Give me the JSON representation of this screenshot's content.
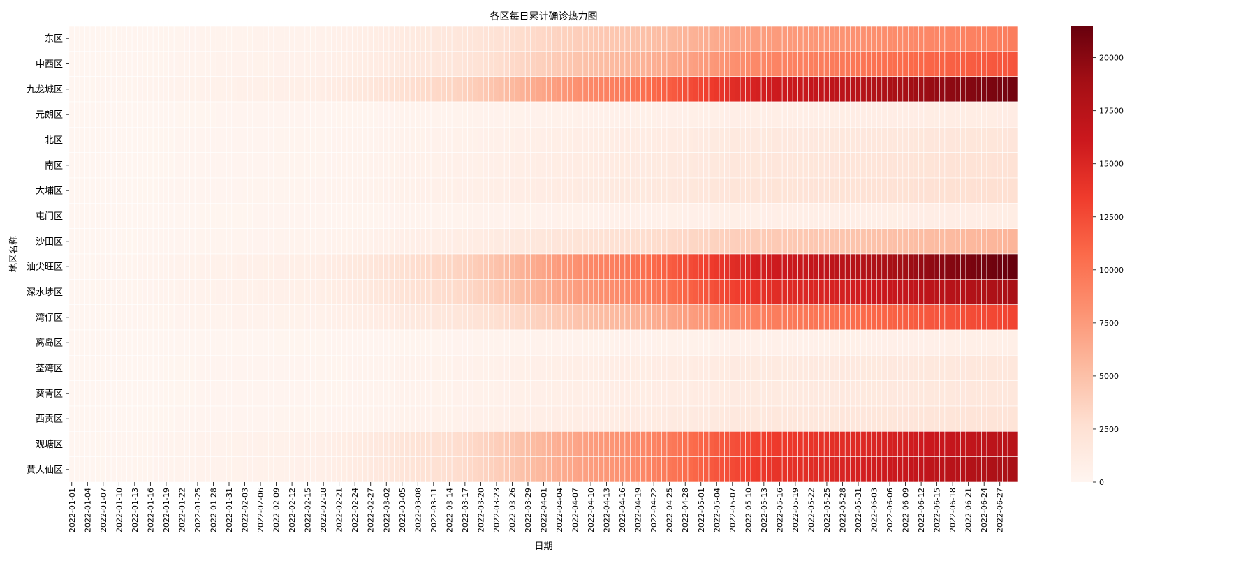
{
  "chart_data": {
    "type": "heatmap",
    "title": "各区每日累计确诊热力图",
    "xlabel": "日期",
    "ylabel": "地区名称",
    "colormap": "Reds",
    "colormap_stops": [
      "#fff5f0",
      "#fee0d2",
      "#fcbba1",
      "#fc9272",
      "#fb6a4a",
      "#ef3b2c",
      "#cb181d",
      "#a50f15",
      "#67000d"
    ],
    "grid_line_color": "#ffffff",
    "date_range": [
      "2022-01-01",
      "2022-06-30"
    ],
    "value_range": [
      0,
      21500
    ],
    "x_tick_labels": [
      "2022-01-01",
      "2022-01-04",
      "2022-01-07",
      "2022-01-10",
      "2022-01-13",
      "2022-01-16",
      "2022-01-19",
      "2022-01-22",
      "2022-01-25",
      "2022-01-28",
      "2022-01-31",
      "2022-02-03",
      "2022-02-06",
      "2022-02-09",
      "2022-02-12",
      "2022-02-15",
      "2022-02-18",
      "2022-02-21",
      "2022-02-24",
      "2022-02-27",
      "2022-03-02",
      "2022-03-05",
      "2022-03-08",
      "2022-03-11",
      "2022-03-14",
      "2022-03-17",
      "2022-03-20",
      "2022-03-23",
      "2022-03-26",
      "2022-03-29",
      "2022-04-01",
      "2022-04-04",
      "2022-04-07",
      "2022-04-10",
      "2022-04-13",
      "2022-04-16",
      "2022-04-19",
      "2022-04-22",
      "2022-04-25",
      "2022-04-28",
      "2022-05-01",
      "2022-05-04",
      "2022-05-07",
      "2022-05-10",
      "2022-05-13",
      "2022-05-16",
      "2022-05-19",
      "2022-05-22",
      "2022-05-25",
      "2022-05-28",
      "2022-05-31",
      "2022-06-03",
      "2022-06-06",
      "2022-06-09",
      "2022-06-12",
      "2022-06-15",
      "2022-06-18",
      "2022-06-21",
      "2022-06-24",
      "2022-06-27"
    ],
    "districts": [
      "东区",
      "中西区",
      "九龙城区",
      "元朗区",
      "北区",
      "南区",
      "大埔区",
      "屯门区",
      "沙田区",
      "油尖旺区",
      "深水埗区",
      "湾仔区",
      "离岛区",
      "荃湾区",
      "葵青区",
      "西贡区",
      "观塘区",
      "黄大仙区"
    ],
    "series": [
      {
        "name": "东区",
        "checkpoints": [
          [
            "2022-01-01",
            0
          ],
          [
            "2022-02-15",
            400
          ],
          [
            "2022-03-15",
            1800
          ],
          [
            "2022-04-15",
            4600
          ],
          [
            "2022-05-15",
            7500
          ],
          [
            "2022-06-30",
            9500
          ]
        ]
      },
      {
        "name": "中西区",
        "checkpoints": [
          [
            "2022-01-01",
            0
          ],
          [
            "2022-02-15",
            500
          ],
          [
            "2022-03-15",
            2000
          ],
          [
            "2022-04-15",
            5500
          ],
          [
            "2022-05-15",
            9000
          ],
          [
            "2022-06-30",
            12000
          ]
        ]
      },
      {
        "name": "九龙城区",
        "checkpoints": [
          [
            "2022-01-01",
            0
          ],
          [
            "2022-02-15",
            800
          ],
          [
            "2022-03-15",
            3500
          ],
          [
            "2022-04-15",
            9500
          ],
          [
            "2022-05-15",
            16000
          ],
          [
            "2022-06-30",
            21000
          ]
        ]
      },
      {
        "name": "元朗区",
        "checkpoints": [
          [
            "2022-01-01",
            0
          ],
          [
            "2022-02-15",
            100
          ],
          [
            "2022-03-15",
            300
          ],
          [
            "2022-04-15",
            650
          ],
          [
            "2022-05-15",
            900
          ],
          [
            "2022-06-30",
            1100
          ]
        ]
      },
      {
        "name": "北区",
        "checkpoints": [
          [
            "2022-01-01",
            0
          ],
          [
            "2022-02-15",
            150
          ],
          [
            "2022-03-15",
            500
          ],
          [
            "2022-04-15",
            1100
          ],
          [
            "2022-05-15",
            1600
          ],
          [
            "2022-06-30",
            2000
          ]
        ]
      },
      {
        "name": "南区",
        "checkpoints": [
          [
            "2022-01-01",
            0
          ],
          [
            "2022-02-15",
            150
          ],
          [
            "2022-03-15",
            600
          ],
          [
            "2022-04-15",
            1300
          ],
          [
            "2022-05-15",
            1900
          ],
          [
            "2022-06-30",
            2400
          ]
        ]
      },
      {
        "name": "大埔区",
        "checkpoints": [
          [
            "2022-01-01",
            0
          ],
          [
            "2022-02-15",
            180
          ],
          [
            "2022-03-15",
            700
          ],
          [
            "2022-04-15",
            1500
          ],
          [
            "2022-05-15",
            2200
          ],
          [
            "2022-06-30",
            2700
          ]
        ]
      },
      {
        "name": "屯门区",
        "checkpoints": [
          [
            "2022-01-01",
            0
          ],
          [
            "2022-02-15",
            80
          ],
          [
            "2022-03-15",
            300
          ],
          [
            "2022-04-15",
            600
          ],
          [
            "2022-05-15",
            850
          ],
          [
            "2022-06-30",
            1050
          ]
        ]
      },
      {
        "name": "沙田区",
        "checkpoints": [
          [
            "2022-01-01",
            0
          ],
          [
            "2022-02-15",
            250
          ],
          [
            "2022-03-15",
            1000
          ],
          [
            "2022-04-15",
            2600
          ],
          [
            "2022-05-15",
            4300
          ],
          [
            "2022-06-30",
            5800
          ]
        ]
      },
      {
        "name": "油尖旺区",
        "checkpoints": [
          [
            "2022-01-01",
            0
          ],
          [
            "2022-02-15",
            800
          ],
          [
            "2022-03-15",
            3500
          ],
          [
            "2022-04-15",
            9500
          ],
          [
            "2022-05-15",
            16000
          ],
          [
            "2022-06-30",
            21500
          ]
        ]
      },
      {
        "name": "深水埗区",
        "checkpoints": [
          [
            "2022-01-01",
            0
          ],
          [
            "2022-02-15",
            700
          ],
          [
            "2022-03-15",
            3000
          ],
          [
            "2022-04-15",
            8500
          ],
          [
            "2022-05-15",
            14500
          ],
          [
            "2022-06-30",
            18500
          ]
        ]
      },
      {
        "name": "湾仔区",
        "checkpoints": [
          [
            "2022-01-01",
            0
          ],
          [
            "2022-02-15",
            450
          ],
          [
            "2022-03-15",
            1900
          ],
          [
            "2022-04-15",
            5500
          ],
          [
            "2022-05-15",
            9500
          ],
          [
            "2022-06-30",
            13000
          ]
        ]
      },
      {
        "name": "离岛区",
        "checkpoints": [
          [
            "2022-01-01",
            0
          ],
          [
            "2022-02-15",
            50
          ],
          [
            "2022-03-15",
            200
          ],
          [
            "2022-04-15",
            450
          ],
          [
            "2022-05-15",
            650
          ],
          [
            "2022-06-30",
            800
          ]
        ]
      },
      {
        "name": "荃湾区",
        "checkpoints": [
          [
            "2022-01-01",
            0
          ],
          [
            "2022-02-15",
            120
          ],
          [
            "2022-03-15",
            450
          ],
          [
            "2022-04-15",
            1000
          ],
          [
            "2022-05-15",
            1450
          ],
          [
            "2022-06-30",
            1800
          ]
        ]
      },
      {
        "name": "葵青区",
        "checkpoints": [
          [
            "2022-01-01",
            0
          ],
          [
            "2022-02-15",
            120
          ],
          [
            "2022-03-15",
            450
          ],
          [
            "2022-04-15",
            1000
          ],
          [
            "2022-05-15",
            1450
          ],
          [
            "2022-06-30",
            1800
          ]
        ]
      },
      {
        "name": "西贡区",
        "checkpoints": [
          [
            "2022-01-01",
            0
          ],
          [
            "2022-02-15",
            150
          ],
          [
            "2022-03-15",
            550
          ],
          [
            "2022-04-15",
            1200
          ],
          [
            "2022-05-15",
            1750
          ],
          [
            "2022-06-30",
            2200
          ]
        ]
      },
      {
        "name": "观塘区",
        "checkpoints": [
          [
            "2022-01-01",
            0
          ],
          [
            "2022-02-15",
            600
          ],
          [
            "2022-03-15",
            2800
          ],
          [
            "2022-04-15",
            8000
          ],
          [
            "2022-05-15",
            13500
          ],
          [
            "2022-06-30",
            17500
          ]
        ]
      },
      {
        "name": "黄大仙区",
        "checkpoints": [
          [
            "2022-01-01",
            0
          ],
          [
            "2022-02-15",
            600
          ],
          [
            "2022-03-15",
            2800
          ],
          [
            "2022-04-15",
            8000
          ],
          [
            "2022-05-15",
            14000
          ],
          [
            "2022-06-30",
            18500
          ]
        ]
      }
    ],
    "colorbar": {
      "ticks": [
        0,
        2500,
        5000,
        7500,
        10000,
        12500,
        15000,
        17500,
        20000
      ],
      "tick_labels": [
        "0",
        "2500",
        "5000",
        "7500",
        "10000",
        "12500",
        "15000",
        "17500",
        "20000"
      ]
    }
  }
}
